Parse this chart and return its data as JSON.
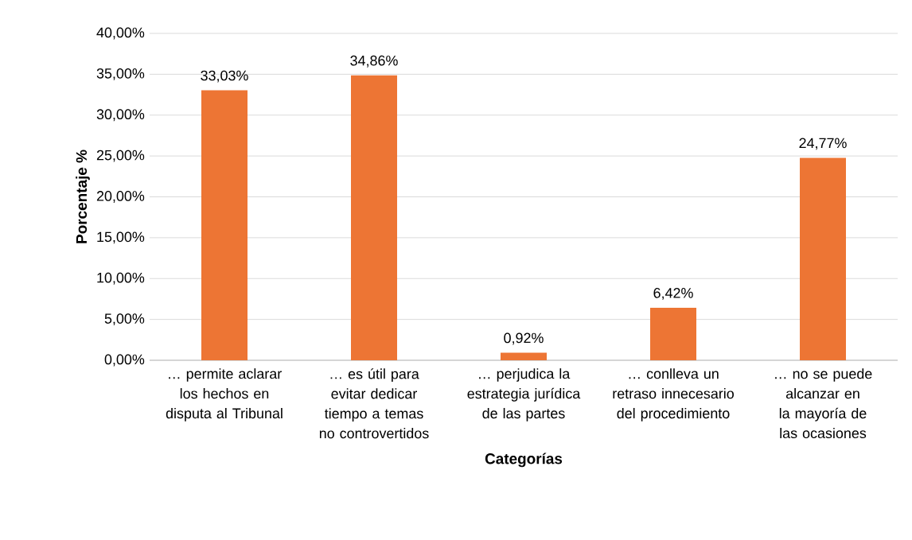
{
  "chart_data": {
    "type": "bar",
    "xlabel": "Categorías",
    "ylabel": "Porcentaje %",
    "categories": [
      "… permite aclarar los hechos en disputa al Tribunal",
      "… es útil para evitar dedicar tiempo a temas no controvertidos",
      "… perjudica la estrategia jurídica de las partes",
      "… conlleva un retraso innecesario del procedimiento",
      "… no se puede alcanzar en la mayoría de las ocasiones"
    ],
    "values": [
      33.03,
      34.86,
      0.92,
      6.42,
      24.77
    ],
    "value_labels": [
      "33,03%",
      "34,86%",
      "0,92%",
      "6,42%",
      "24,77%"
    ],
    "color": "#ed7534",
    "ylim": [
      0,
      40
    ],
    "yticks": [
      {
        "value": 0,
        "label": "0,00%"
      },
      {
        "value": 5,
        "label": "5,00%"
      },
      {
        "value": 10,
        "label": "10,00%"
      },
      {
        "value": 15,
        "label": "15,00%"
      },
      {
        "value": 20,
        "label": "20,00%"
      },
      {
        "value": 25,
        "label": "25,00%"
      },
      {
        "value": 30,
        "label": "30,00%"
      },
      {
        "value": 35,
        "label": "35,00%"
      },
      {
        "value": 40,
        "label": "40,00%"
      }
    ],
    "grid": "y"
  }
}
